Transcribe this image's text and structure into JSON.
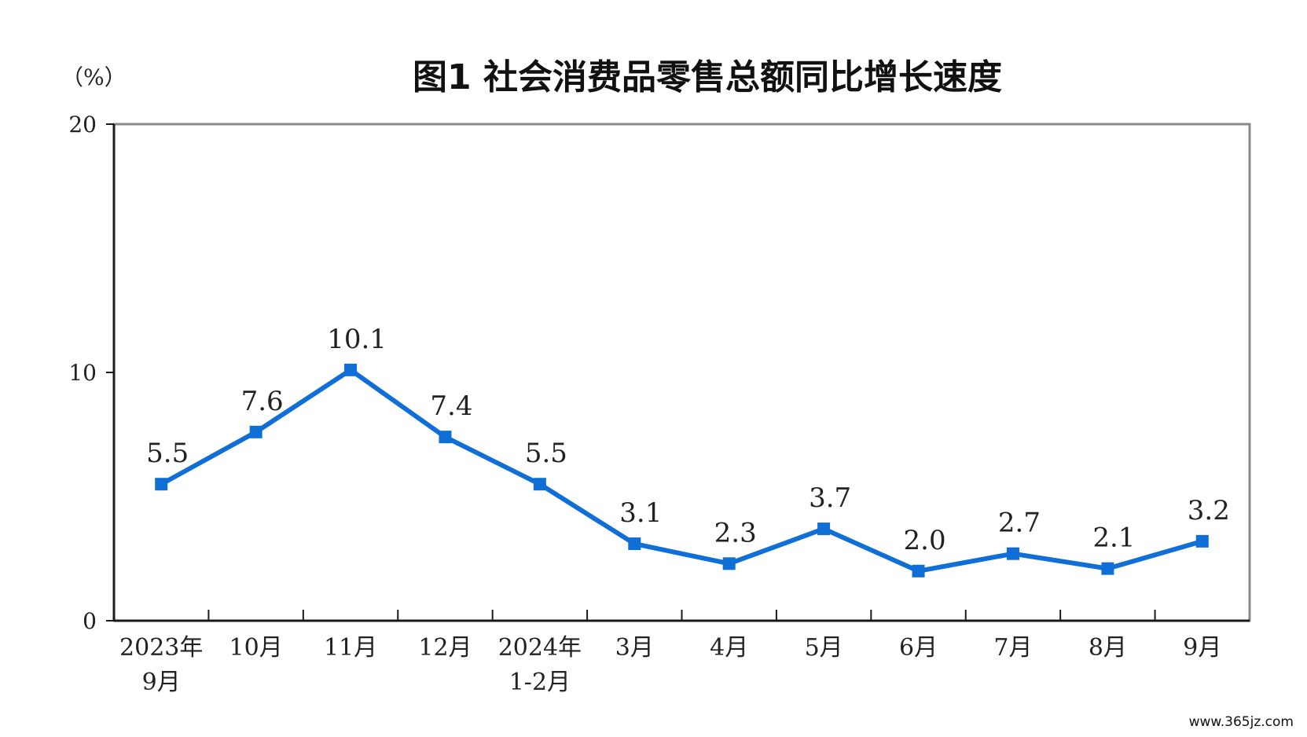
{
  "page": {
    "watermark": "www.365jz.com"
  },
  "chart_data": {
    "type": "line",
    "title": "图1  社会消费品零售总额同比增长速度",
    "unit_label": "（%）",
    "ylim": [
      0,
      20
    ],
    "yticks": [
      "0",
      "10",
      "20"
    ],
    "categories": [
      [
        "2023年",
        "9月"
      ],
      [
        "10月"
      ],
      [
        "11月"
      ],
      [
        "12月"
      ],
      [
        "2024年",
        "1-2月"
      ],
      [
        "3月"
      ],
      [
        "4月"
      ],
      [
        "5月"
      ],
      [
        "6月"
      ],
      [
        "7月"
      ],
      [
        "8月"
      ],
      [
        "9月"
      ]
    ],
    "values": [
      5.5,
      7.6,
      10.1,
      7.4,
      5.5,
      3.1,
      2.3,
      3.7,
      2.0,
      2.7,
      2.1,
      3.2
    ],
    "value_labels": [
      "5.5",
      "7.6",
      "10.1",
      "7.4",
      "5.5",
      "3.1",
      "2.3",
      "3.7",
      "2.0",
      "2.7",
      "2.1",
      "3.2"
    ],
    "series_color": "#0f6fd6",
    "grid": false,
    "legend": "none"
  }
}
